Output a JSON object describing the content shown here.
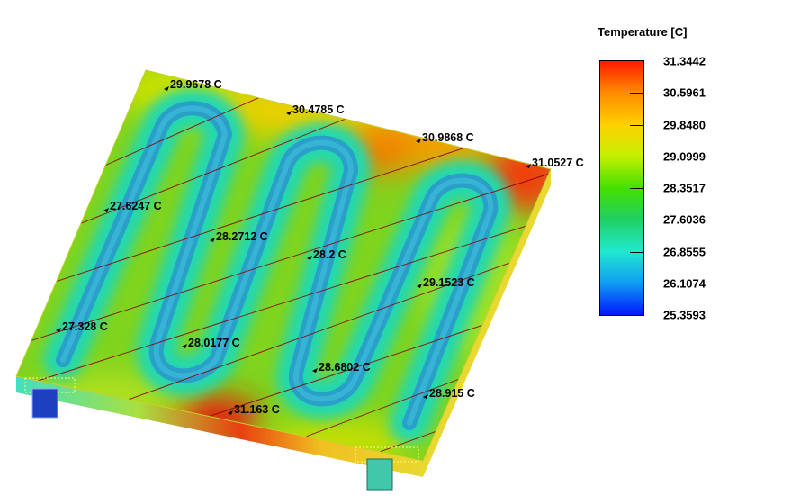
{
  "legend": {
    "title": "Temperature [C]",
    "ticks": [
      "31.3442",
      "30.5961",
      "29.8480",
      "29.0999",
      "28.3517",
      "27.6036",
      "26.8555",
      "26.1074",
      "25.3593"
    ]
  },
  "probes": [
    {
      "label": "29.9678 C"
    },
    {
      "label": "30.4785 C"
    },
    {
      "label": "30.9868 C"
    },
    {
      "label": "31.0527 C"
    },
    {
      "label": "27.6247 C"
    },
    {
      "label": "28.2712 C"
    },
    {
      "label": "28.2 C"
    },
    {
      "label": "29.1523 C"
    },
    {
      "label": "27.328 C"
    },
    {
      "label": "28.0177 C"
    },
    {
      "label": "28.6802 C"
    },
    {
      "label": "28.915 C"
    },
    {
      "label": "31.163 C"
    }
  ],
  "colors": {
    "plate_base": "#7fd41e",
    "channel_outer": "#18c8a8",
    "channel_inner": "#2aa0c8",
    "hot": "#e02010",
    "warm": "#ffcc00",
    "edge": "#e8d830",
    "section_line": "#8b0000",
    "outlet": "#1e3fbf"
  }
}
